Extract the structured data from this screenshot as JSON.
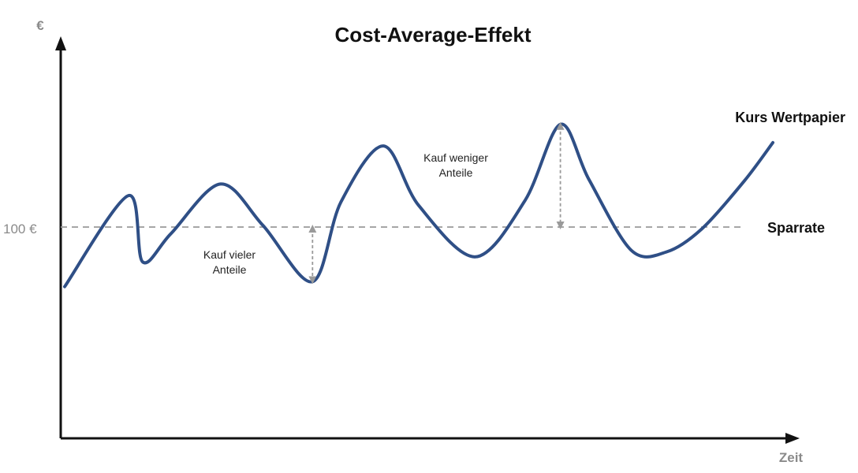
{
  "chart_data": {
    "type": "line",
    "title": "Cost-Average-Effekt",
    "ylabel": "€",
    "xlabel": "Zeit",
    "y_ticks": [
      {
        "value": 100,
        "label": "100 €"
      }
    ],
    "ylim": [
      0,
      200
    ],
    "xlim": [
      0,
      100
    ],
    "grid": false,
    "series": [
      {
        "name": "Kurs Wertpapier",
        "color": "#2f4f86",
        "x": [
          0,
          9,
          11,
          15,
          22,
          28,
          35,
          39,
          45,
          50,
          58,
          65,
          70,
          74,
          80,
          85,
          90,
          96,
          100
        ],
        "y": [
          64,
          119,
          79,
          96,
          126,
          101,
          67,
          115,
          149,
          113,
          82,
          116,
          162,
          129,
          86,
          85,
          99,
          128,
          151
        ]
      },
      {
        "name": "Sparrate",
        "color": "#9a9a9a",
        "style": "dashed",
        "x": [
          0,
          100
        ],
        "y": [
          100,
          100
        ]
      }
    ],
    "annotations": [
      {
        "lines": [
          "Kauf vieler",
          "Anteile"
        ],
        "x": 35,
        "y_from": 100,
        "y_to": 67
      },
      {
        "lines": [
          "Kauf weniger",
          "Anteile"
        ],
        "x": 70,
        "y_from": 162,
        "y_to": 100
      }
    ]
  }
}
